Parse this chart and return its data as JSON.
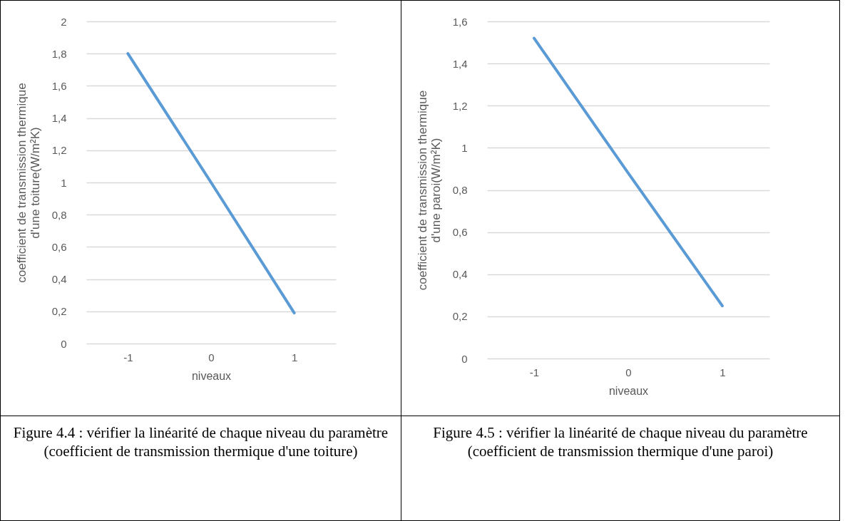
{
  "chart_data": [
    {
      "type": "line",
      "xlabel": "niveaux",
      "ylabel": "coefficient de transmission thermique d'une toiture(W/m²K)",
      "categories": [
        "-1",
        "0",
        "1"
      ],
      "series": [
        {
          "color": "#5b9bd5",
          "values": [
            1.8,
            1.0,
            0.19
          ]
        }
      ],
      "ylim": [
        0,
        2
      ],
      "yticks": [
        0,
        {
          "value": 0.2,
          "label": "0,2"
        },
        {
          "value": 0.4,
          "label": "0,4"
        },
        {
          "value": 0.6,
          "label": "0,6"
        },
        {
          "value": 0.8,
          "label": "0,8"
        },
        1,
        {
          "value": 1.2,
          "label": "1,2"
        },
        {
          "value": 1.4,
          "label": "1,4"
        },
        {
          "value": 1.6,
          "label": "1,6"
        },
        {
          "value": 1.8,
          "label": "1,8"
        },
        2
      ],
      "grid": "y",
      "marker": "none",
      "line_style": "solid",
      "annotations": [
        "Figure 4.4 : vérifier la linéarité de chaque niveau du paramètre (coefficient de transmission thermique d'une toiture)"
      ]
    },
    {
      "type": "line",
      "xlabel": "niveaux",
      "ylabel": "coefficient de transmission thermique d'une paroi(W/m²K)",
      "categories": [
        "-1",
        "0",
        "1"
      ],
      "series": [
        {
          "color": "#5b9bd5",
          "values": [
            1.52,
            0.88,
            0.25
          ]
        }
      ],
      "ylim": [
        0,
        1.6
      ],
      "yticks": [
        0,
        {
          "value": 0.2,
          "label": "0,2"
        },
        {
          "value": 0.4,
          "label": "0,4"
        },
        {
          "value": 0.6,
          "label": "0,6"
        },
        {
          "value": 0.8,
          "label": "0,8"
        },
        1,
        {
          "value": 1.2,
          "label": "1,2"
        },
        {
          "value": 1.4,
          "label": "1,4"
        },
        {
          "value": 1.6,
          "label": "1,6"
        }
      ],
      "grid": "y",
      "marker": "none",
      "line_style": "solid",
      "annotations": [
        "Figure 4.5 : vérifier la linéarité de chaque niveau du paramètre (coefficient de transmission thermique d'une paroi)"
      ]
    }
  ]
}
